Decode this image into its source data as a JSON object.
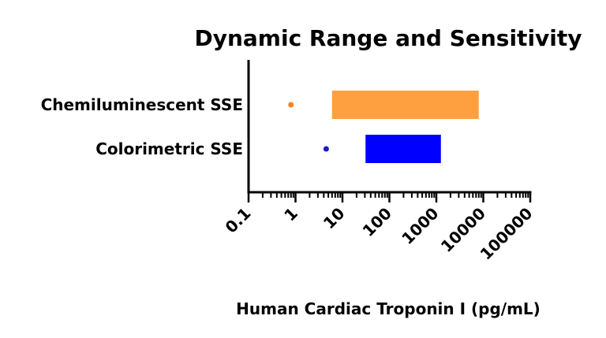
{
  "chart_data": {
    "type": "bar",
    "subtype": "floating-range-with-sensitivity-point",
    "title": "Dynamic Range and Sensitivity",
    "xlabel": "Human  Cardiac Troponin I (pg/mL)",
    "ylabel": "",
    "x_scale": "log",
    "xlim": [
      0.1,
      100000
    ],
    "x_ticks": [
      0.1,
      1,
      10,
      100,
      1000,
      10000,
      100000
    ],
    "x_tick_labels": [
      "0.1",
      "1",
      "10",
      "100",
      "1000",
      "10000",
      "100000"
    ],
    "categories": [
      "Chemiluminescent SSE",
      "Colorimetric SSE"
    ],
    "series": [
      {
        "category": "Chemiluminescent SSE",
        "range": [
          6,
          8000
        ],
        "sensitivity": 0.8,
        "color": "#FFA040",
        "point_color": "#F58220"
      },
      {
        "category": "Colorimetric SSE",
        "range": [
          31,
          1250
        ],
        "sensitivity": 4.5,
        "color": "#0000FF",
        "point_color": "#1A1AC8"
      }
    ],
    "grid": false,
    "legend": "none"
  }
}
